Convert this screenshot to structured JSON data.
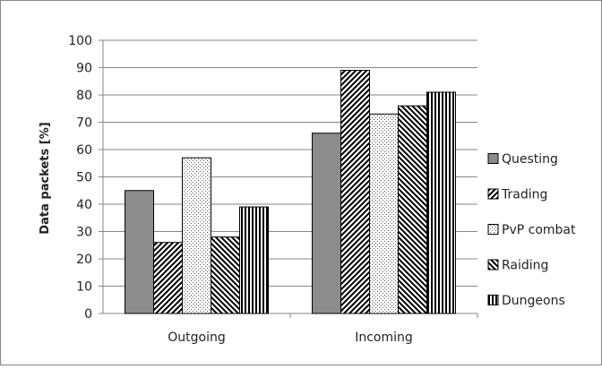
{
  "chart_data": {
    "type": "bar",
    "title": "",
    "xlabel": "",
    "ylabel": "Data packets [%]",
    "ylim": [
      0,
      100
    ],
    "yticks": [
      0,
      10,
      20,
      30,
      40,
      50,
      60,
      70,
      80,
      90,
      100
    ],
    "grid": true,
    "legend_position": "right",
    "categories": [
      "Outgoing",
      "Incoming"
    ],
    "series": [
      {
        "name": "Questing",
        "values": [
          45,
          66
        ],
        "fill": "gray-solid"
      },
      {
        "name": "Trading",
        "values": [
          26,
          89
        ],
        "fill": "diagonal-up"
      },
      {
        "name": "PvP combat",
        "values": [
          57,
          73
        ],
        "fill": "dotted"
      },
      {
        "name": "Raiding",
        "values": [
          28,
          76
        ],
        "fill": "diagonal-down"
      },
      {
        "name": "Dungeons",
        "values": [
          39,
          81
        ],
        "fill": "vertical-lines"
      }
    ],
    "colors": {
      "bar_stroke": "#000000",
      "solid_fill": "#8c8c8c",
      "grid": "#868686",
      "axis": "#868686"
    }
  }
}
